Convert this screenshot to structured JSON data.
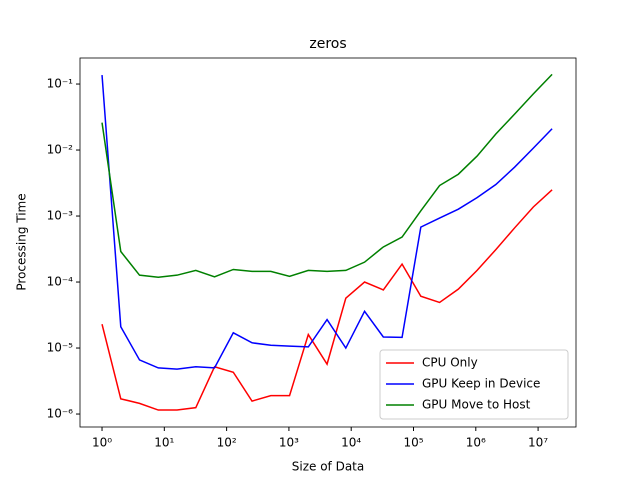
{
  "chart_data": {
    "type": "line",
    "title": "zeros",
    "x_label": "Size of Data",
    "y_label": "Processing Time",
    "x": [
      1,
      2,
      4,
      8,
      16,
      32,
      64,
      128,
      256,
      512,
      1024,
      2048,
      4096,
      8192,
      16384,
      32768,
      65536,
      131072,
      262144,
      524288,
      1048576,
      2097152,
      4194304,
      8388608,
      16777216
    ],
    "series": [
      {
        "name": "CPU Only",
        "color": "#ff0000",
        "values": [
          2.3e-05,
          1.7e-06,
          1.45e-06,
          1.15e-06,
          1.15e-06,
          1.25e-06,
          5.2e-06,
          4.3e-06,
          1.57e-06,
          1.9e-06,
          1.9e-06,
          1.6e-05,
          5.7e-06,
          5.7e-05,
          0.0001,
          7.6e-05,
          0.000187,
          6.1e-05,
          4.9e-05,
          7.8e-05,
          0.00015,
          0.00031,
          0.00066,
          0.00137,
          0.0025
        ]
      },
      {
        "name": "GPU Keep in Device",
        "color": "#0000ff",
        "values": [
          0.137,
          2.1e-05,
          6.6e-06,
          5e-06,
          4.8e-06,
          5.2e-06,
          5e-06,
          1.7e-05,
          1.2e-05,
          1.1e-05,
          1.07e-05,
          1.04e-05,
          2.7e-05,
          1e-05,
          3.6e-05,
          1.47e-05,
          1.45e-05,
          0.00068,
          0.00093,
          0.00127,
          0.0019,
          0.003,
          0.0055,
          0.0107,
          0.021
        ]
      },
      {
        "name": "GPU Move to Host",
        "color": "#008000",
        "values": [
          0.026,
          0.00029,
          0.000127,
          0.000118,
          0.000127,
          0.00015,
          0.00012,
          0.000155,
          0.000145,
          0.000145,
          0.000122,
          0.00015,
          0.000145,
          0.00015,
          0.0002,
          0.00034,
          0.00048,
          0.0012,
          0.0029,
          0.0043,
          0.0081,
          0.0175,
          0.035,
          0.071,
          0.14
        ]
      }
    ],
    "xscale": "log",
    "yscale": "log",
    "xlim": [
      0.443,
      40600000
    ],
    "ylim": [
      6.36e-07,
      0.248
    ],
    "xticks": [
      {
        "value": 1,
        "label": "10⁰"
      },
      {
        "value": 10,
        "label": "10¹"
      },
      {
        "value": 100,
        "label": "10²"
      },
      {
        "value": 1000,
        "label": "10³"
      },
      {
        "value": 10000,
        "label": "10⁴"
      },
      {
        "value": 100000,
        "label": "10⁵"
      },
      {
        "value": 1000000,
        "label": "10⁶"
      },
      {
        "value": 10000000,
        "label": "10⁷"
      }
    ],
    "yticks": [
      {
        "value": 1e-06,
        "label": "10⁻⁶"
      },
      {
        "value": 1e-05,
        "label": "10⁻⁵"
      },
      {
        "value": 0.0001,
        "label": "10⁻⁴"
      },
      {
        "value": 0.001,
        "label": "10⁻³"
      },
      {
        "value": 0.01,
        "label": "10⁻²"
      },
      {
        "value": 0.1,
        "label": "10⁻¹"
      }
    ],
    "legend": "lower right"
  }
}
